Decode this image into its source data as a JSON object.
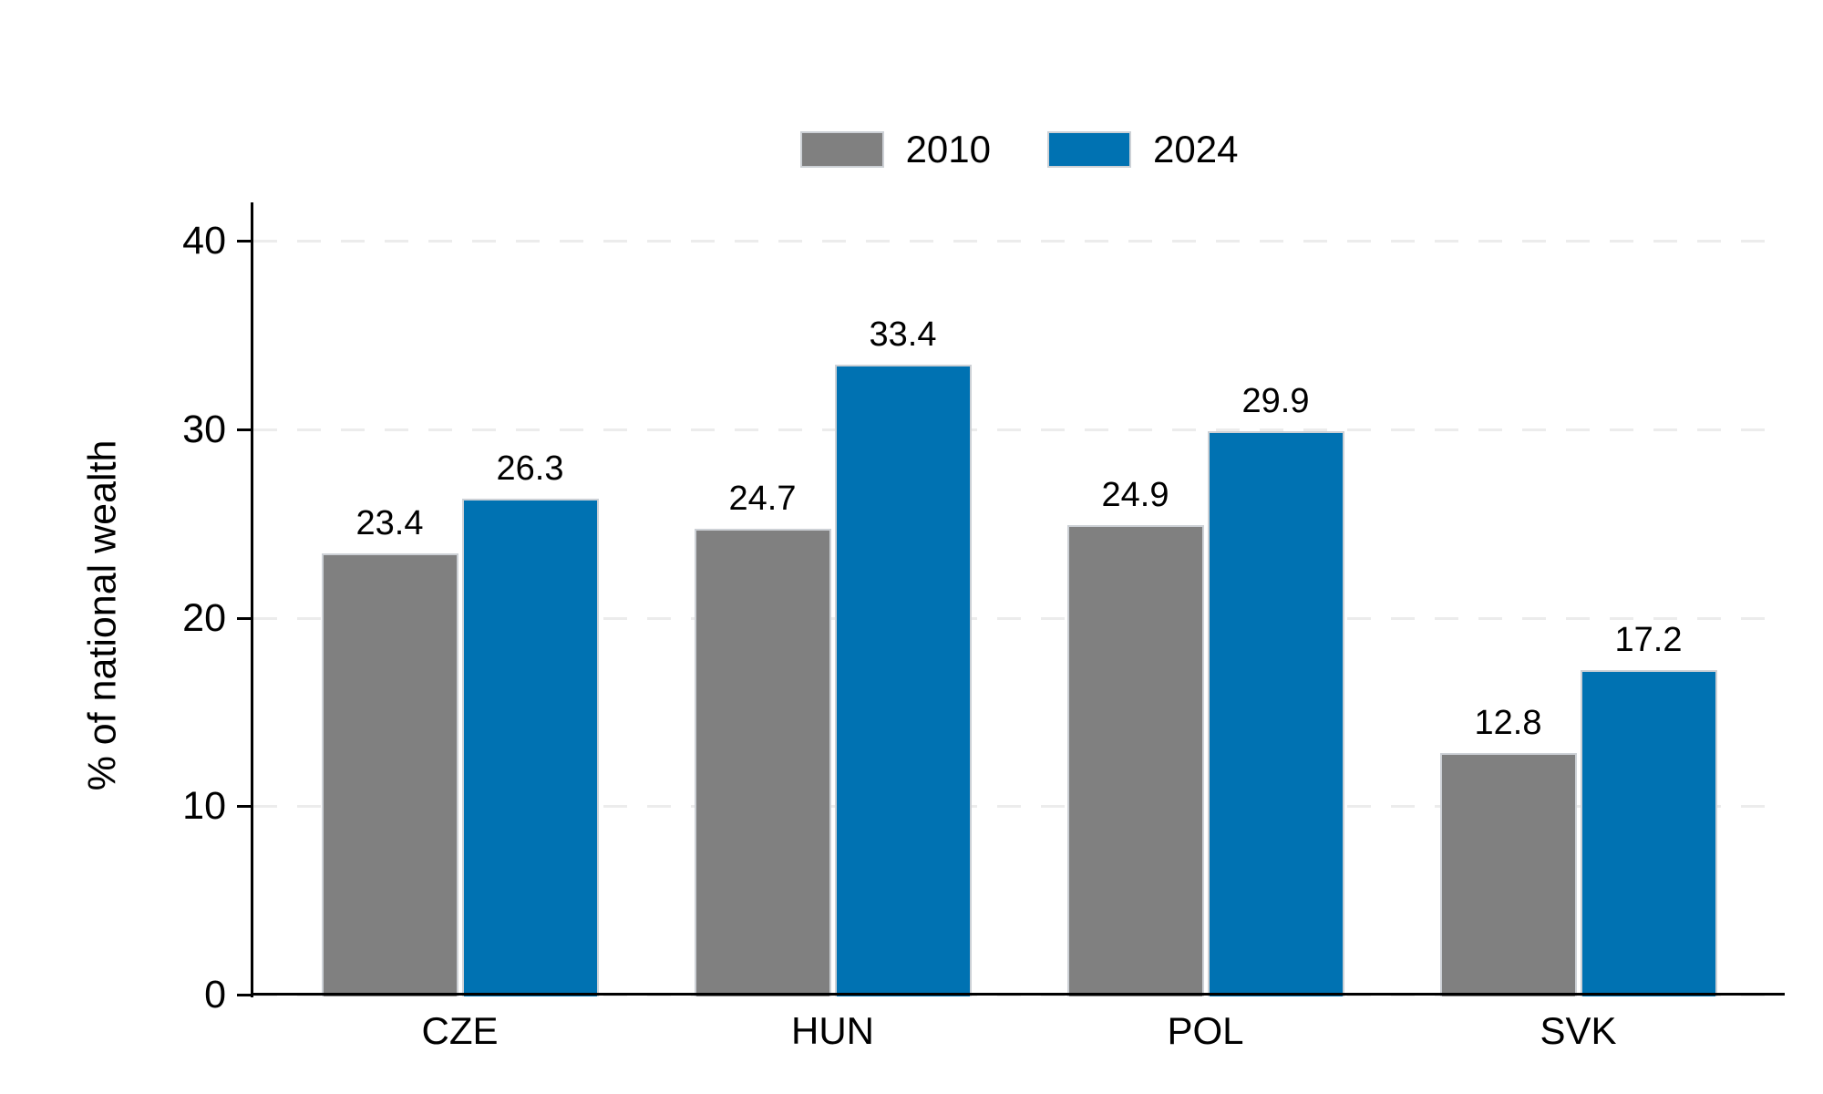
{
  "chart_data": {
    "type": "bar",
    "categories": [
      "CZE",
      "HUN",
      "POL",
      "SVK"
    ],
    "series": [
      {
        "name": "2010",
        "color": "#808080",
        "values": [
          23.4,
          24.7,
          24.9,
          12.8
        ]
      },
      {
        "name": "2024",
        "color": "#0072B2",
        "values": [
          26.3,
          33.4,
          29.9,
          17.2
        ]
      }
    ],
    "bar_value_labels": [
      "23.4",
      "26.3",
      "24.7",
      "33.4",
      "24.9",
      "29.9",
      "12.8",
      "17.2"
    ],
    "title": "",
    "xlabel": "",
    "ylabel": "% of national wealth",
    "yticks": [
      0,
      10,
      20,
      30,
      40
    ],
    "ytick_labels": [
      "0",
      "10",
      "20",
      "30",
      "40"
    ],
    "ylim": [
      0,
      42
    ],
    "grid": "horizontal-dashed",
    "legend_position": "top-center",
    "colors": {
      "grid": "#ececec",
      "axis": "#000000",
      "bar_outline": "#cdd1d6",
      "text": "#000000",
      "background": "#ffffff"
    }
  }
}
